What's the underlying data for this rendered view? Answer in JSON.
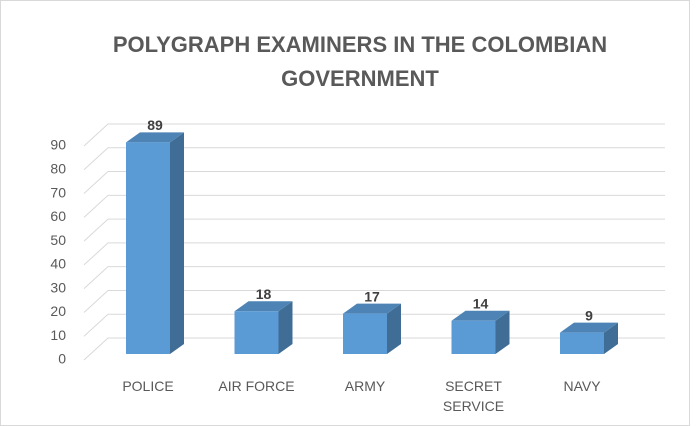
{
  "chart_data": {
    "type": "bar3d",
    "title": "POLYGRAPH EXAMINERS IN THE COLOMBIAN GOVERNMENT",
    "categories": [
      "POLICE",
      "AIR FORCE",
      "ARMY",
      "SECRET SERVICE",
      "NAVY"
    ],
    "values": [
      89,
      18,
      17,
      14,
      9
    ],
    "color": "#5b9bd5",
    "ylim": [
      0,
      90
    ],
    "yticks": [
      0,
      10,
      20,
      30,
      40,
      50,
      60,
      70,
      80,
      90
    ],
    "grid": true
  }
}
